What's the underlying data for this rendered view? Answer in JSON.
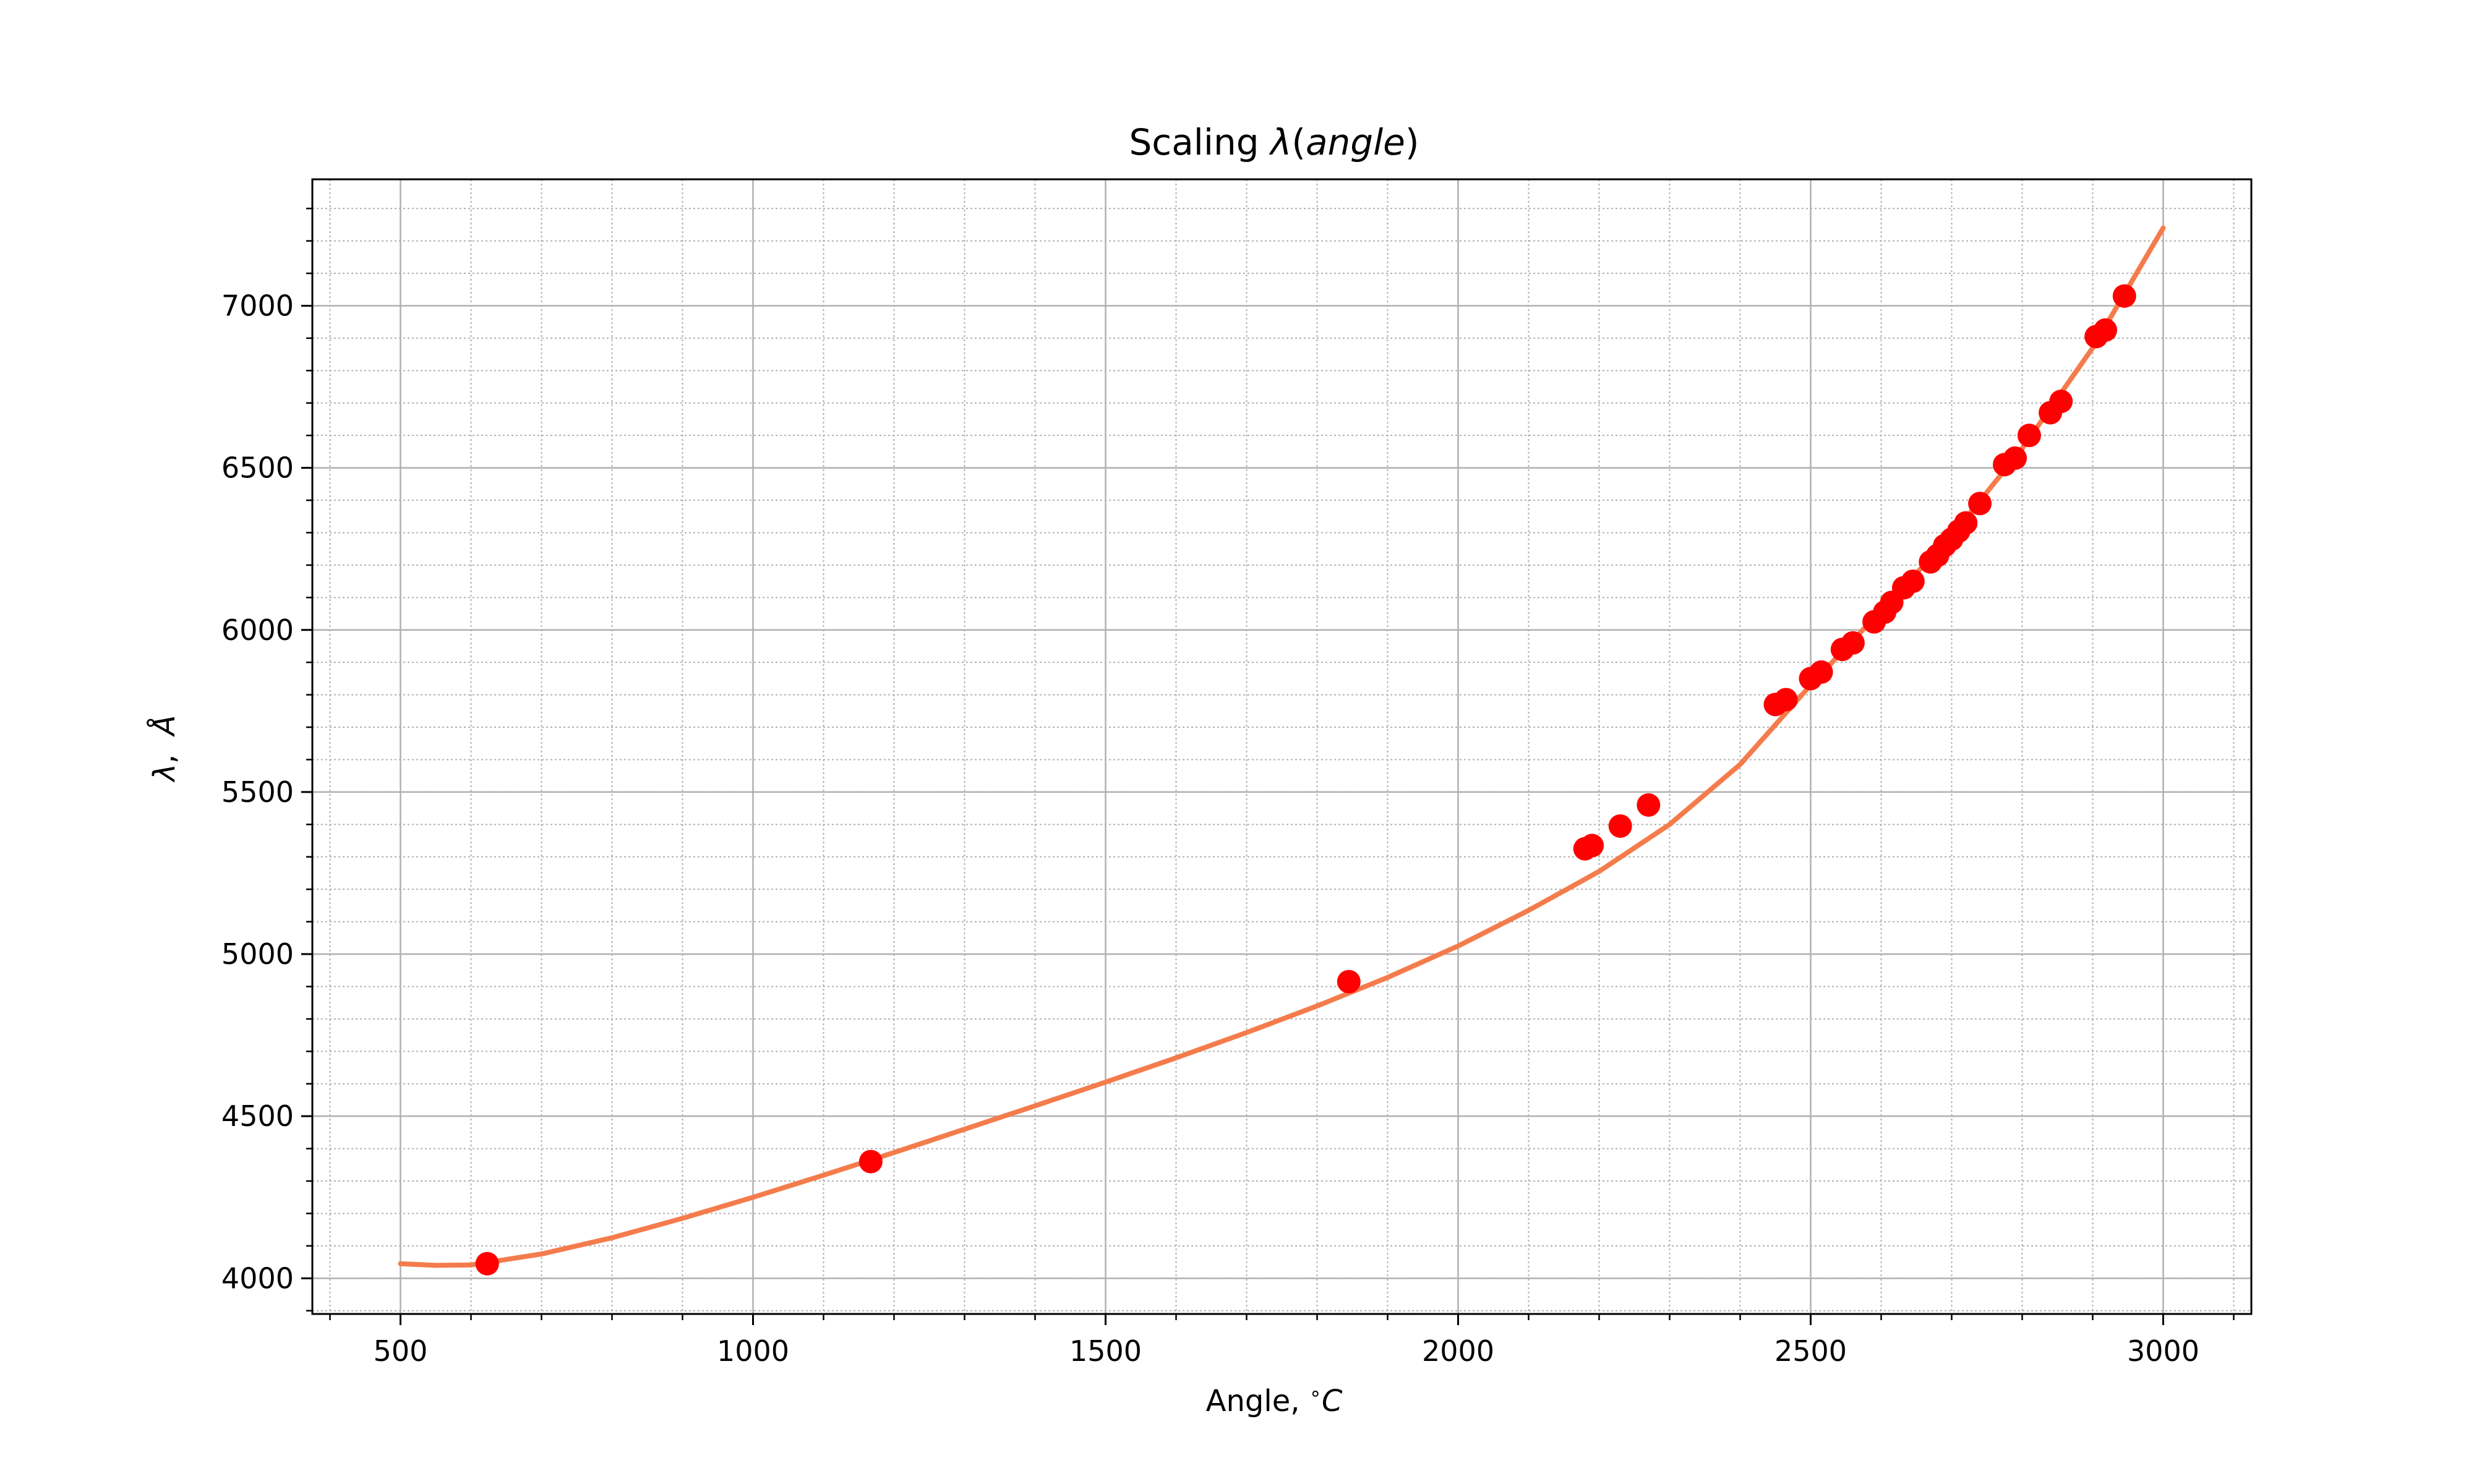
{
  "chart_data": {
    "type": "scatter",
    "title": {
      "prefix": "Scaling ",
      "symbol": "λ",
      "open": "(",
      "arg": "angle",
      "close": ")"
    },
    "xlabel": {
      "text": "Angle, ",
      "unit_sup": "∘",
      "unit": "C"
    },
    "ylabel": {
      "symbol": "λ",
      "sep": ",  ",
      "unit": "Å"
    },
    "xlim": [
      375,
      3125
    ],
    "ylim": [
      3890,
      7390
    ],
    "xticks": [
      500,
      1000,
      1500,
      2000,
      2500,
      3000
    ],
    "yticks": [
      4000,
      4500,
      5000,
      5500,
      6000,
      6500,
      7000
    ],
    "x_minor_step": 100,
    "y_minor_step": 100,
    "grid": true,
    "colors": {
      "points": "#ff0000",
      "fit_line": "#f47c4c",
      "grid_major": "#b0b0b0",
      "grid_minor": "#b0b0b0"
    },
    "series": [
      {
        "kind": "points",
        "x": [
          623,
          1167,
          1845,
          2180,
          2190,
          2230,
          2270,
          2450,
          2465,
          2500,
          2515,
          2545,
          2560,
          2590,
          2605,
          2615,
          2632,
          2645,
          2670,
          2680,
          2690,
          2700,
          2710,
          2720,
          2740,
          2775,
          2790,
          2810,
          2840,
          2855,
          2905,
          2918,
          2945
        ],
        "y": [
          4045,
          4360,
          4915,
          5325,
          5335,
          5395,
          5460,
          5770,
          5785,
          5850,
          5870,
          5940,
          5960,
          6025,
          6055,
          6085,
          6130,
          6150,
          6210,
          6230,
          6260,
          6280,
          6305,
          6330,
          6390,
          6510,
          6530,
          6600,
          6670,
          6705,
          6905,
          6925,
          7030
        ]
      },
      {
        "kind": "line",
        "x": [
          500,
          550,
          600,
          700,
          800,
          900,
          1000,
          1100,
          1200,
          1300,
          1400,
          1500,
          1600,
          1700,
          1800,
          1900,
          2000,
          2100,
          2200,
          2300,
          2400,
          2500,
          2600,
          2700,
          2800,
          2900,
          3000
        ],
        "y": [
          4045,
          4040,
          4041,
          4075,
          4125,
          4185,
          4250,
          4318,
          4388,
          4460,
          4532,
          4605,
          4680,
          4758,
          4840,
          4928,
          5025,
          5135,
          5255,
          5400,
          5585,
          5830,
          6060,
          6290,
          6560,
          6870,
          7240
        ]
      }
    ]
  }
}
